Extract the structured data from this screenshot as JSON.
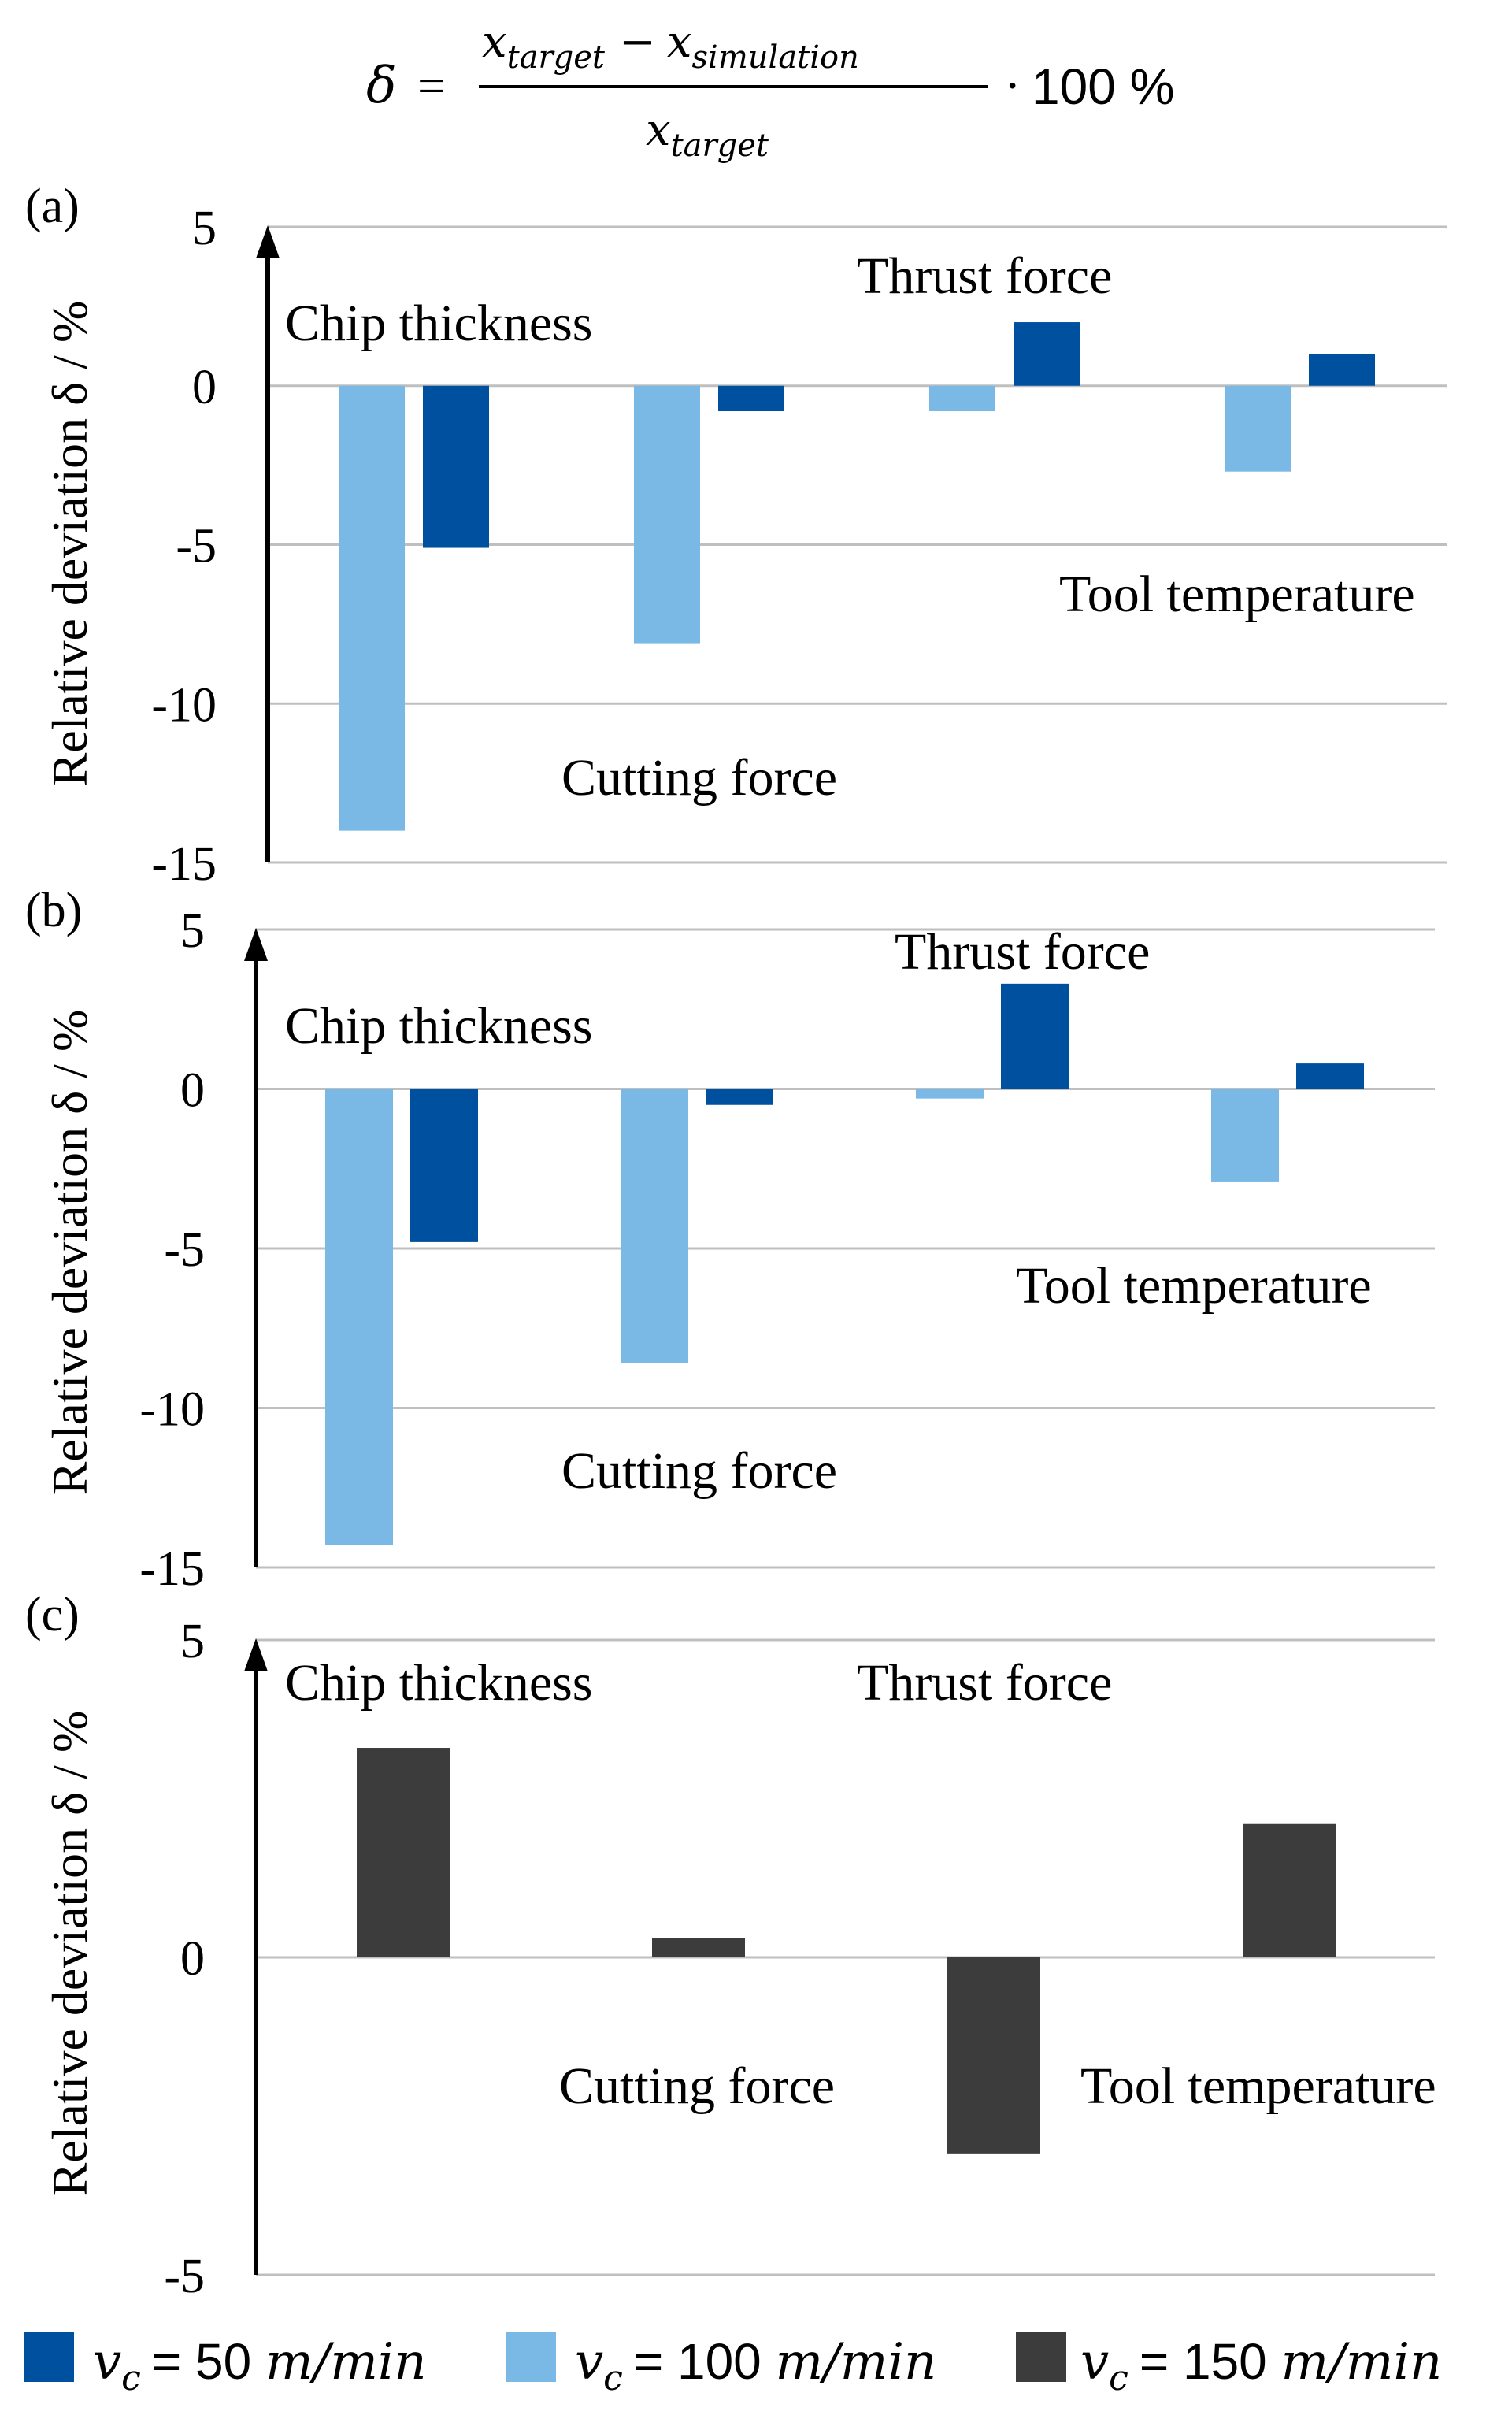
{
  "formula": {
    "delta": "δ",
    "equals": "=",
    "x": "x",
    "sub_target": "target",
    "sub_simulation": "simulation",
    "minus": "−",
    "times": "·",
    "hundred_pct": "100 %"
  },
  "colors": {
    "vc50": "#0050A0",
    "vc100": "#7AB9E6",
    "vc150": "#3C3C3C",
    "grid": "#BFBFBF",
    "axis": "#000000",
    "text": "#000000"
  },
  "legend": [
    {
      "series": "vc50",
      "var": "v",
      "sub": "c",
      "eq": "= 50 ",
      "unit": "m/min"
    },
    {
      "series": "vc100",
      "var": "v",
      "sub": "c",
      "eq": "= 100 ",
      "unit": "m/min"
    },
    {
      "series": "vc150",
      "var": "v",
      "sub": "c",
      "eq": "= 150 ",
      "unit": "m/min"
    }
  ],
  "chart_data": [
    {
      "type": "bar",
      "panel_label": "(a)",
      "ylabel": "Relative deviation δ / %",
      "ylim": [
        -15,
        5
      ],
      "yticks": [
        "5",
        "0",
        "-5",
        "-10",
        "-15"
      ],
      "grid": true,
      "categories": [
        "Chip thickness",
        "Cutting force",
        "Thrust force",
        "Tool temperature"
      ],
      "series": [
        {
          "name": "vc = 100 m/min",
          "key": "vc100",
          "values": [
            -14.0,
            -8.1,
            -0.8,
            -2.7
          ]
        },
        {
          "name": "vc = 50 m/min",
          "key": "vc50",
          "values": [
            -5.1,
            -0.8,
            2.0,
            1.0
          ]
        }
      ]
    },
    {
      "type": "bar",
      "panel_label": "(b)",
      "ylabel": "Relative deviation δ / %",
      "ylim": [
        -15,
        5
      ],
      "yticks": [
        "5",
        "0",
        "-5",
        "-10",
        "-15"
      ],
      "grid": true,
      "categories": [
        "Chip thickness",
        "Cutting force",
        "Thrust force",
        "Tool temperature"
      ],
      "series": [
        {
          "name": "vc = 100 m/min",
          "key": "vc100",
          "values": [
            -14.3,
            -8.6,
            -0.3,
            -2.9
          ]
        },
        {
          "name": "vc = 50 m/min",
          "key": "vc50",
          "values": [
            -4.8,
            -0.5,
            3.3,
            0.8
          ]
        }
      ]
    },
    {
      "type": "bar",
      "panel_label": "(c)",
      "ylabel": "Relative deviation δ / %",
      "ylim": [
        -5,
        5
      ],
      "yticks": [
        "5",
        "0",
        "-5"
      ],
      "grid": true,
      "categories": [
        "Chip thickness",
        "Cutting force",
        "Thrust force",
        "Tool temperature"
      ],
      "series": [
        {
          "name": "vc = 150 m/min",
          "key": "vc150",
          "values": [
            3.3,
            0.3,
            -3.1,
            2.1
          ]
        }
      ]
    }
  ]
}
